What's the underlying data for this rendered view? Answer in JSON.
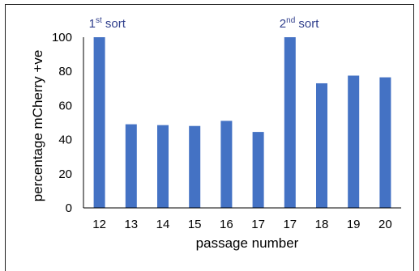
{
  "chart_data": {
    "type": "bar",
    "categories": [
      "12",
      "13",
      "14",
      "15",
      "16",
      "17",
      "17",
      "18",
      "19",
      "20"
    ],
    "values": [
      100,
      49,
      48.5,
      48,
      51,
      44.5,
      100,
      73,
      77.5,
      76.5
    ],
    "xlabel": "passage number",
    "ylabel": "percentage mCherry +ve",
    "ylim": [
      0,
      100
    ],
    "yticks": [
      0,
      20,
      40,
      60,
      80,
      100
    ],
    "grid": false,
    "legend": "none",
    "annotations": [
      {
        "base": "1",
        "sup": "st",
        "rest": " sort",
        "category_index": 0
      },
      {
        "base": "2",
        "sup": "nd",
        "rest": " sort",
        "category_index": 6
      }
    ],
    "colors": {
      "bar": "#4472c4",
      "annotation": "#2f3e8c",
      "axis": "#000000"
    }
  }
}
